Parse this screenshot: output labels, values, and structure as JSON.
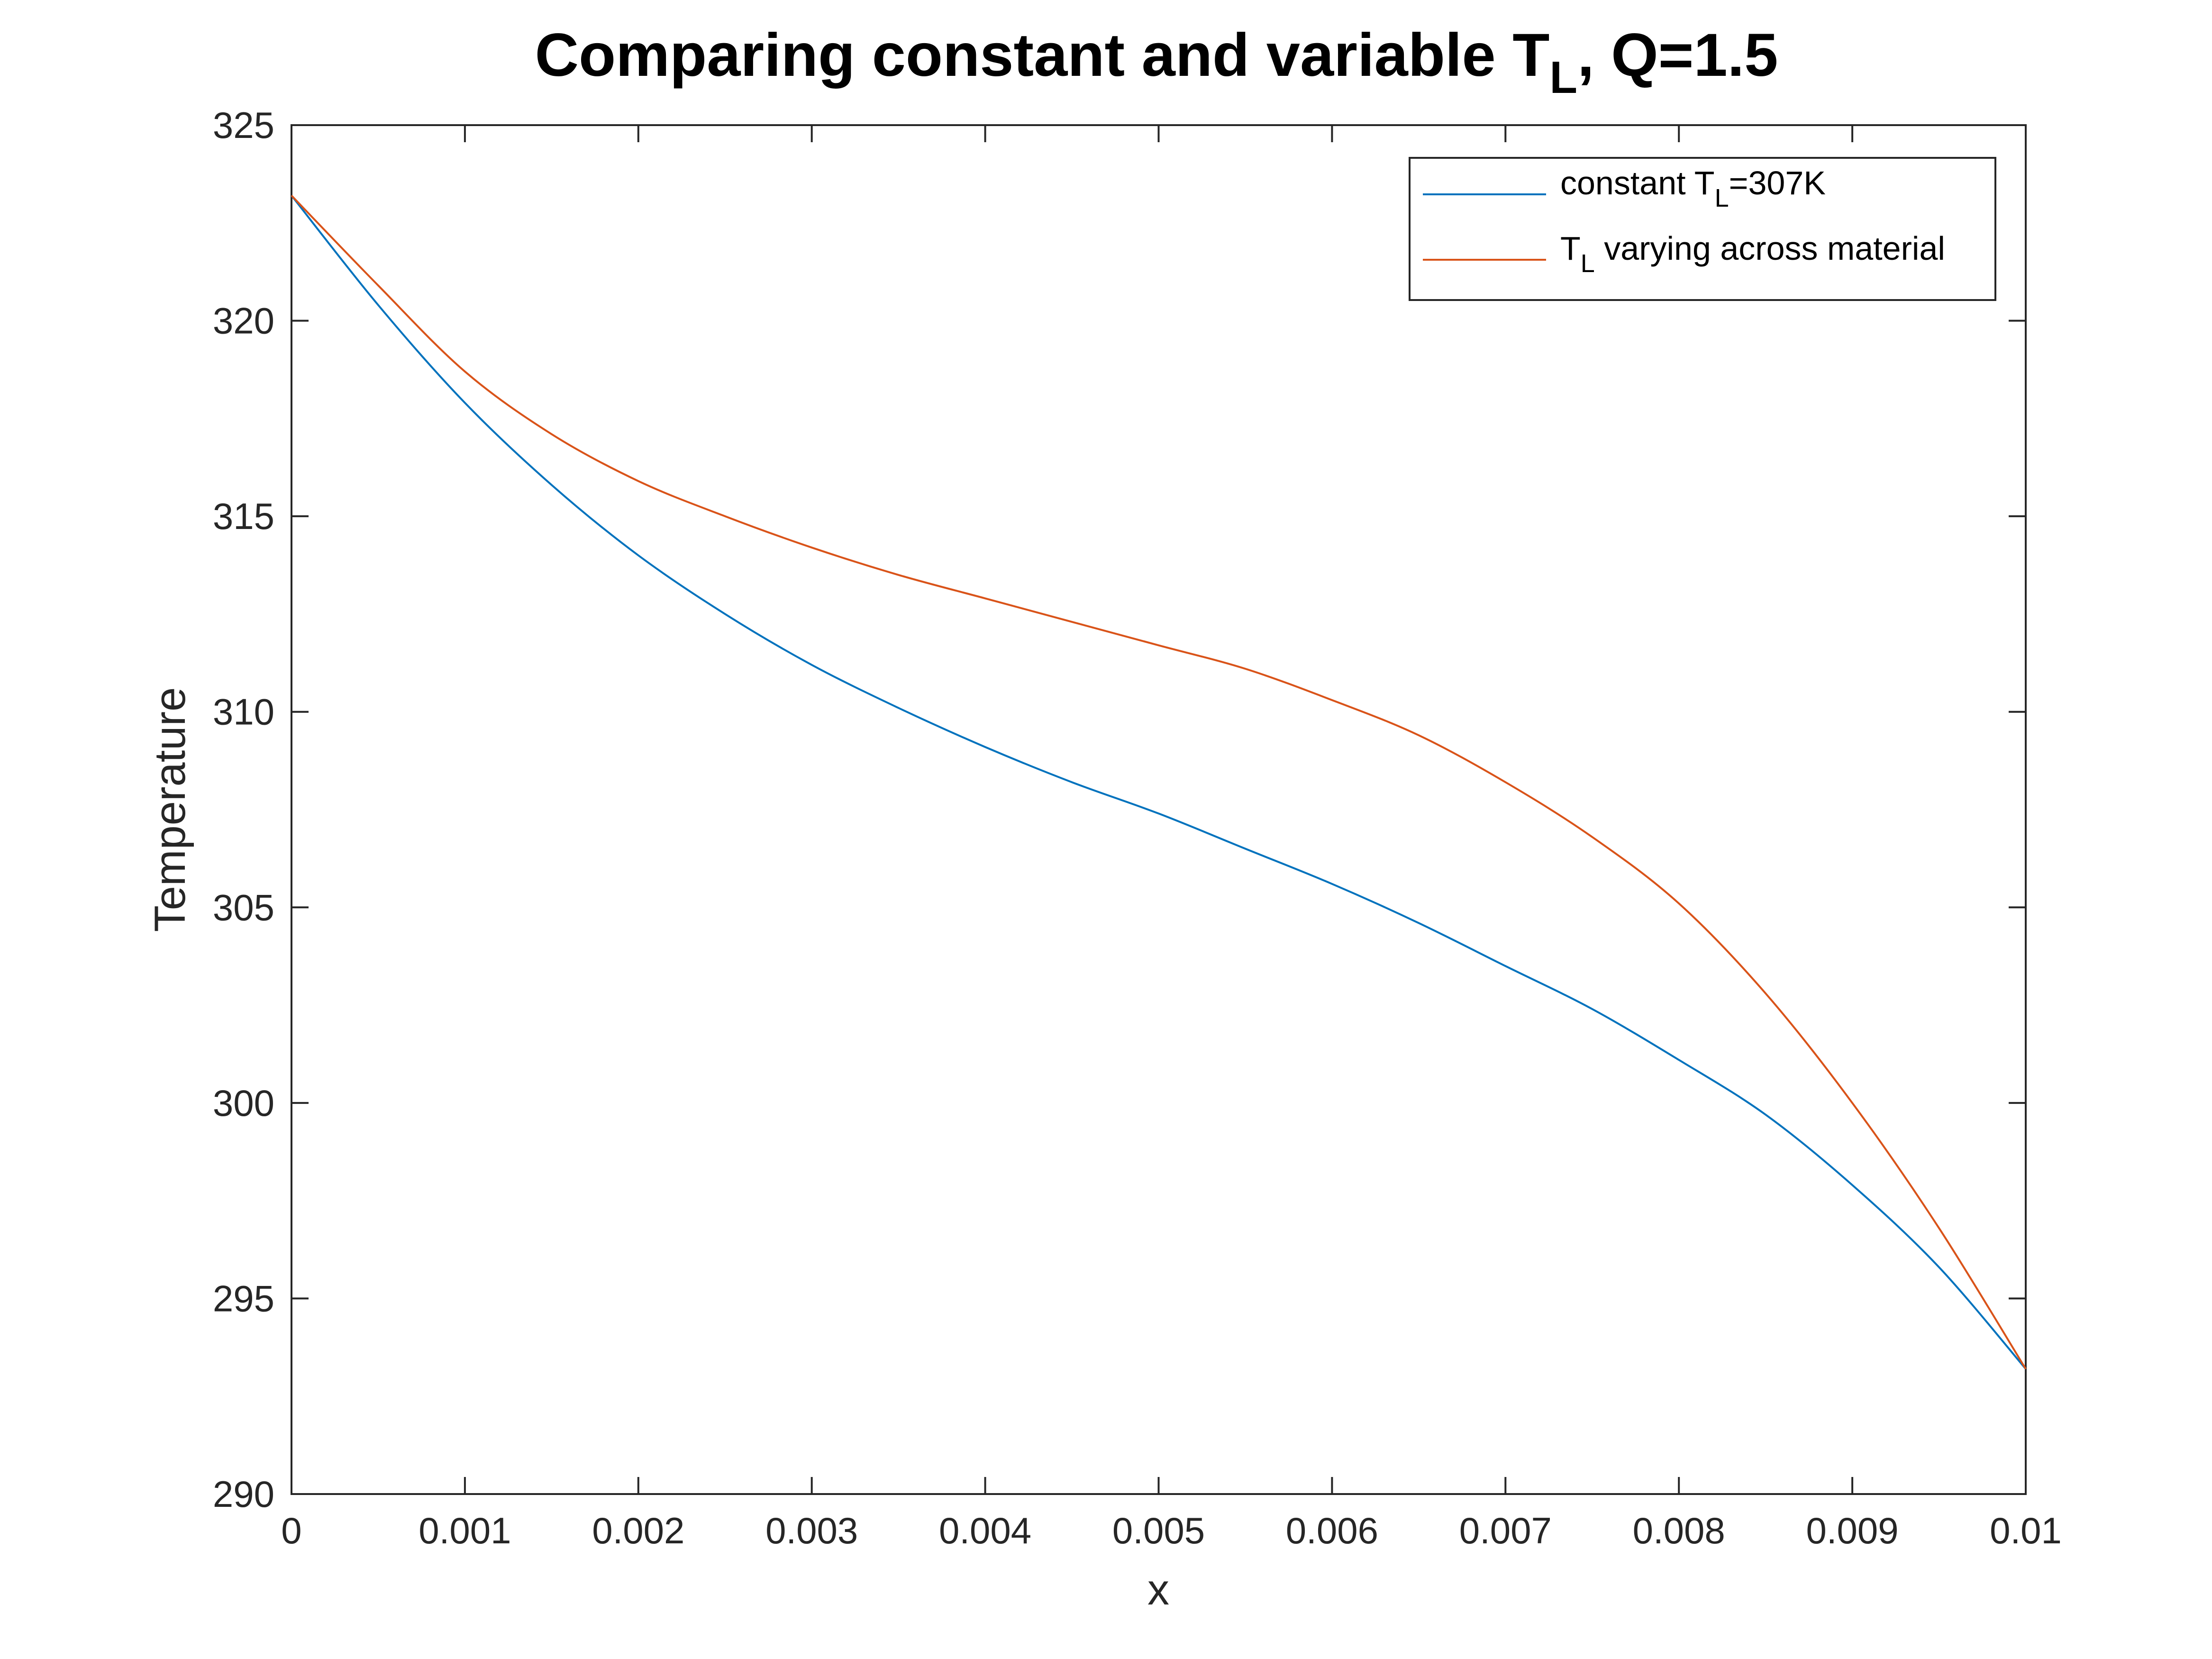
{
  "chart_data": {
    "type": "line",
    "title": {
      "prefix": "Comparing constant and variable T",
      "subscript": "L",
      "suffix": ", Q=1.5"
    },
    "xlabel": "x",
    "ylabel": "Temperature",
    "xlim": [
      0,
      0.01
    ],
    "ylim": [
      290,
      325
    ],
    "xticks": [
      0,
      0.001,
      0.002,
      0.003,
      0.004,
      0.005,
      0.006,
      0.007,
      0.008,
      0.009,
      0.01
    ],
    "xtick_labels": [
      "0",
      "0.001",
      "0.002",
      "0.003",
      "0.004",
      "0.005",
      "0.006",
      "0.007",
      "0.008",
      "0.009",
      "0.01"
    ],
    "yticks": [
      290,
      295,
      300,
      305,
      310,
      315,
      320,
      325
    ],
    "ytick_labels": [
      "290",
      "295",
      "300",
      "305",
      "310",
      "315",
      "320",
      "325"
    ],
    "grid": false,
    "legend_position": "top-right",
    "series": [
      {
        "legend": {
          "prefix": "constant T",
          "subscript": "L",
          "suffix": "=307K"
        },
        "color": "#0072BD",
        "x": [
          0,
          0.0005,
          0.001,
          0.0015,
          0.002,
          0.0025,
          0.003,
          0.0035,
          0.004,
          0.0045,
          0.005,
          0.0055,
          0.006,
          0.0065,
          0.007,
          0.0075,
          0.008,
          0.0085,
          0.009,
          0.0095,
          0.01
        ],
        "y": [
          323.2,
          320.4,
          317.9,
          315.8,
          314.0,
          312.5,
          311.2,
          310.1,
          309.1,
          308.2,
          307.4,
          306.5,
          305.6,
          304.6,
          303.5,
          302.4,
          301.1,
          299.7,
          297.9,
          295.8,
          293.2
        ]
      },
      {
        "legend": {
          "prefix": "T",
          "subscript": "L",
          "suffix": " varying across material"
        },
        "color": "#D95319",
        "x": [
          0,
          0.0005,
          0.001,
          0.0015,
          0.002,
          0.0025,
          0.003,
          0.0035,
          0.004,
          0.0045,
          0.005,
          0.0055,
          0.006,
          0.0065,
          0.007,
          0.0075,
          0.008,
          0.0085,
          0.009,
          0.0095,
          0.01
        ],
        "y": [
          323.2,
          320.9,
          318.7,
          317.1,
          315.9,
          315.0,
          314.2,
          313.5,
          312.9,
          312.3,
          311.7,
          311.1,
          310.3,
          309.4,
          308.2,
          306.8,
          305.1,
          302.8,
          300.0,
          296.8,
          293.2
        ]
      }
    ]
  }
}
